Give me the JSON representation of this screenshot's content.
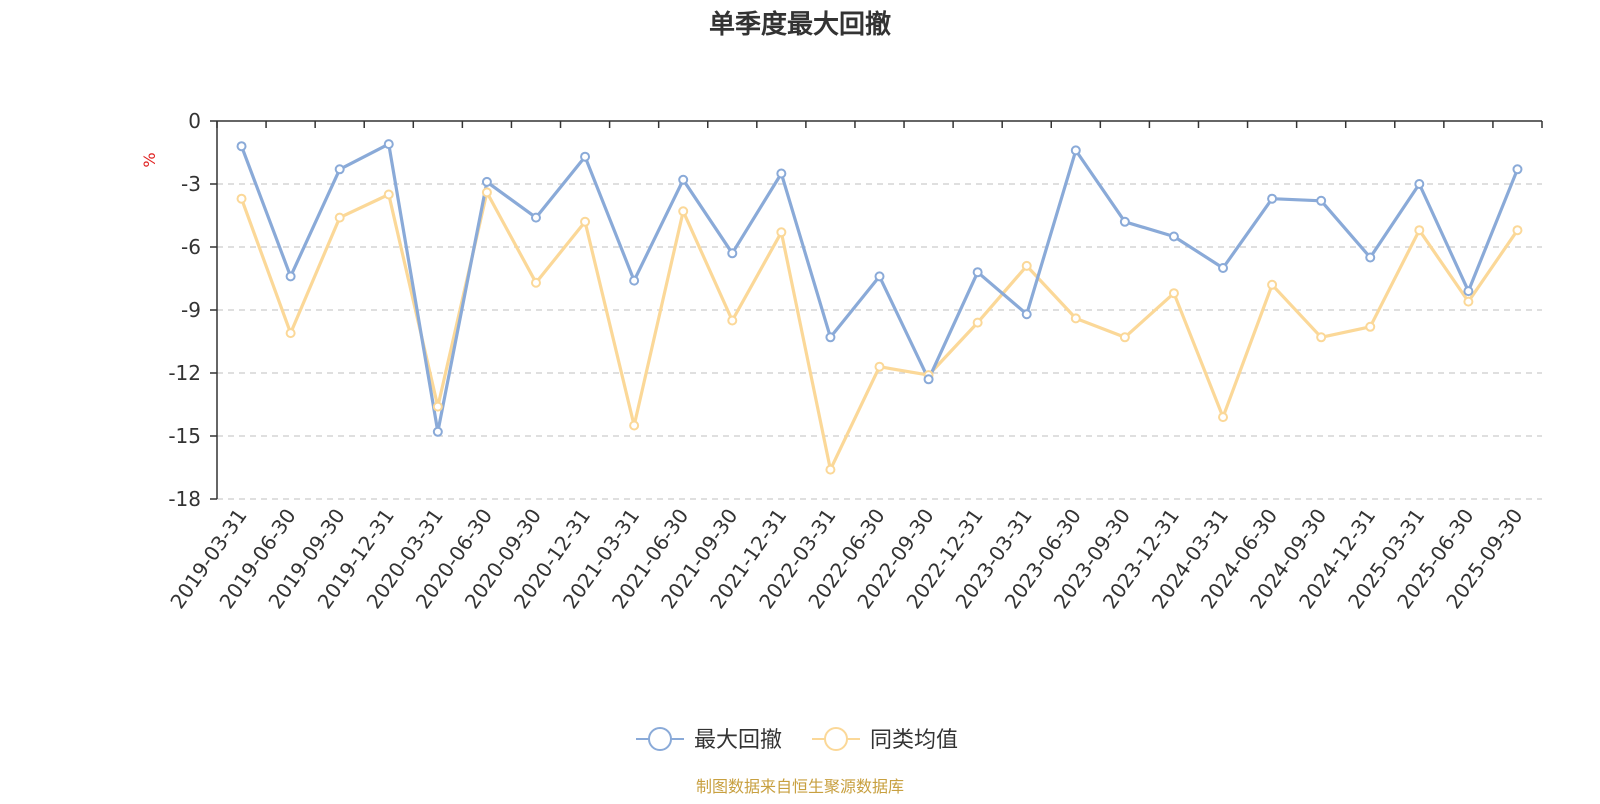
{
  "chart_data": {
    "type": "line",
    "title": "单季度最大回撤",
    "unit": "%",
    "categories": [
      "2019-03-31",
      "2019-06-30",
      "2019-09-30",
      "2019-12-31",
      "2020-03-31",
      "2020-06-30",
      "2020-09-30",
      "2020-12-31",
      "2021-03-31",
      "2021-06-30",
      "2021-09-30",
      "2021-12-31",
      "2022-03-31",
      "2022-06-30",
      "2022-09-30",
      "2022-12-31",
      "2023-03-31",
      "2023-06-30",
      "2023-09-30",
      "2023-12-31",
      "2024-03-31",
      "2024-06-30",
      "2024-09-30",
      "2024-12-31",
      "2025-03-31",
      "2025-06-30",
      "2025-09-30"
    ],
    "series": [
      {
        "name": "最大回撤",
        "color": "#8aaad8",
        "values": [
          -1.2,
          -7.4,
          -2.3,
          -1.1,
          -14.8,
          -2.9,
          -4.6,
          -1.7,
          -7.6,
          -2.8,
          -6.3,
          -2.5,
          -10.3,
          -7.4,
          -12.3,
          -7.2,
          -9.2,
          -1.4,
          -4.8,
          -5.5,
          -7.0,
          -3.7,
          -3.8,
          -6.5,
          -3.0,
          -8.1,
          -2.3
        ]
      },
      {
        "name": "同类均值",
        "color": "#fbd898",
        "values": [
          -3.7,
          -10.1,
          -4.6,
          -3.5,
          -13.6,
          -3.4,
          -7.7,
          -4.8,
          -14.5,
          -4.3,
          -9.5,
          -5.3,
          -16.6,
          -11.7,
          -12.1,
          -9.6,
          -6.9,
          -9.4,
          -10.3,
          -8.2,
          -14.1,
          -7.8,
          -10.3,
          -9.8,
          -5.2,
          -8.6,
          -5.2
        ]
      }
    ],
    "ylim": [
      -18,
      0
    ],
    "yticks": [
      0,
      -3,
      -6,
      -9,
      -12,
      -15,
      -18
    ],
    "grid": true,
    "legend_position": "bottom-center",
    "unit_color": "#e02020",
    "source_color": "#c8a040"
  },
  "source": "制图数据来自恒生聚源数据库"
}
